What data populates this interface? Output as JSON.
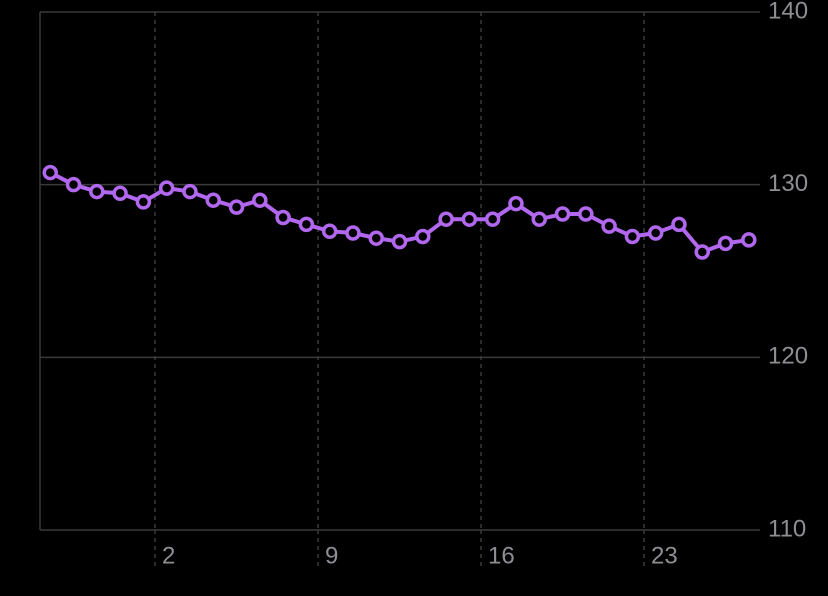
{
  "chart_data": {
    "type": "line",
    "x": [
      -2.5,
      -1.5,
      -0.5,
      0.5,
      1.5,
      2.5,
      3.5,
      4.5,
      5.5,
      6.5,
      7.5,
      8.5,
      9.5,
      10.5,
      11.5,
      12.5,
      13.5,
      14.5,
      15.5,
      16.5,
      17.5,
      18.5,
      19.5,
      20.5,
      21.5,
      22.5,
      23.5,
      24.5,
      25.5,
      26.5,
      27.5
    ],
    "series": [
      {
        "color": "#b267ef",
        "values": [
          130.7,
          130.0,
          129.6,
          129.5,
          129.0,
          129.8,
          129.6,
          129.1,
          128.7,
          129.1,
          128.1,
          127.7,
          127.3,
          127.2,
          126.9,
          126.7,
          127.0,
          128.0,
          128.0,
          128.0,
          128.9,
          128.0,
          128.3,
          128.3,
          127.6,
          127.0,
          127.2,
          127.7,
          126.1,
          126.6,
          126.8
        ]
      }
    ],
    "xlim": [
      -2.94,
      27.98
    ],
    "xticks": [
      2,
      9,
      16,
      23
    ],
    "ylim": [
      110,
      140
    ],
    "yticks": [
      110,
      120,
      130,
      140
    ],
    "grid": true
  }
}
